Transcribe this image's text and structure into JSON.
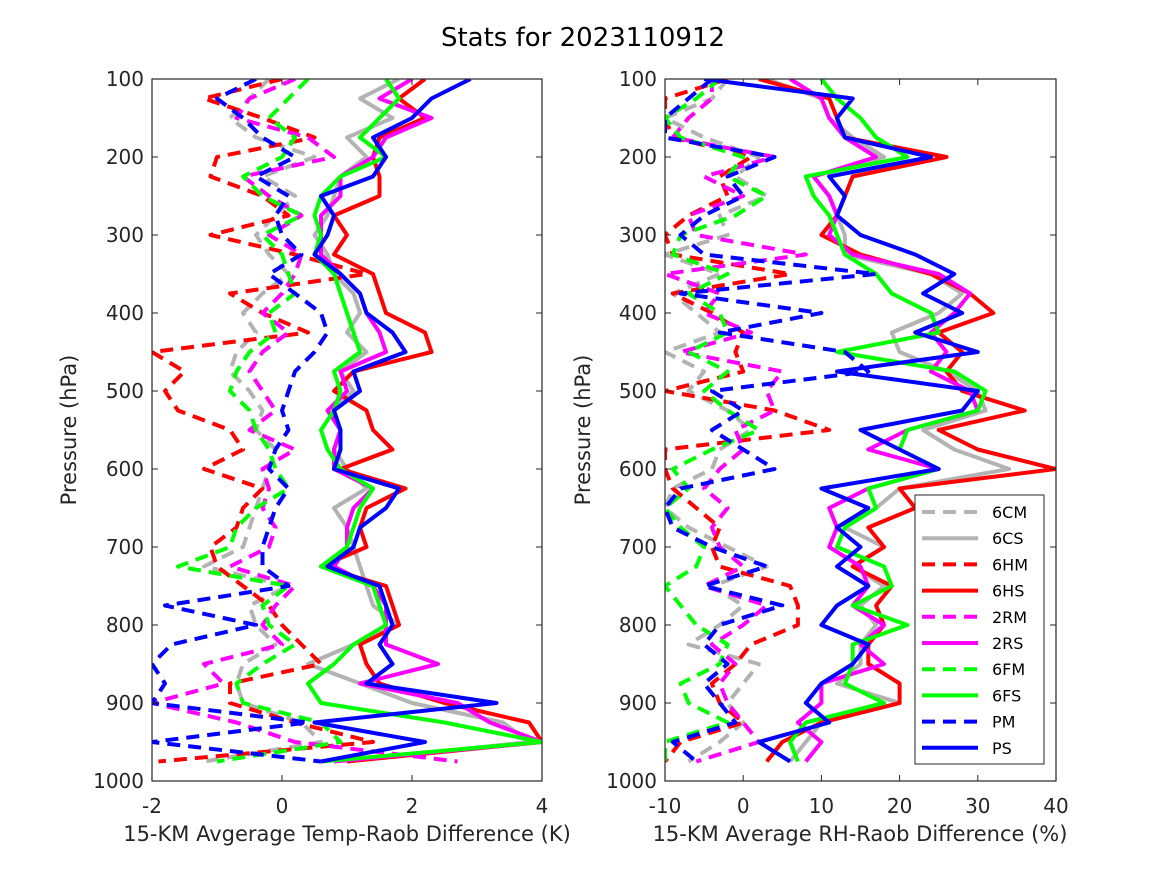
{
  "title": "Stats for 2023110912",
  "colors": {
    "gray": "#b3b3b3",
    "red": "#ff0000",
    "magenta": "#ff00ff",
    "green": "#00ff00",
    "blue": "#0000ff"
  },
  "chart_data": [
    {
      "type": "line",
      "xlabel": "15-KM Avgerage Temp-Raob Difference (K)",
      "ylabel": "Pressure (hPa)",
      "xlim": [
        -2,
        4
      ],
      "ylim": [
        100,
        1000
      ],
      "y_reversed": true,
      "x_ticks": [
        -2,
        0,
        2,
        4
      ],
      "y_ticks": [
        100,
        200,
        300,
        400,
        500,
        600,
        700,
        800,
        900,
        1000
      ],
      "pressure_levels": [
        100,
        125,
        150,
        175,
        200,
        225,
        250,
        275,
        300,
        325,
        350,
        375,
        400,
        425,
        450,
        475,
        500,
        525,
        550,
        575,
        600,
        625,
        650,
        675,
        700,
        725,
        750,
        775,
        800,
        825,
        850,
        875,
        900,
        925,
        950,
        975
      ],
      "series": [
        {
          "name": "6CM",
          "color": "gray",
          "dashed": true,
          "values": [
            -0.2,
            -0.5,
            -0.8,
            -0.4,
            0.5,
            -0.3,
            0.2,
            -0.1,
            -0.4,
            -0.2,
            0.1,
            -0.3,
            -0.6,
            -0.4,
            -0.7,
            -0.8,
            -0.5,
            -0.3,
            -0.4,
            -0.1,
            -0.2,
            -0.3,
            -0.4,
            -0.5,
            -0.6,
            -1.2,
            0.1,
            -0.5,
            -0.4,
            -0.1,
            -0.6,
            -0.7,
            -0.6,
            0.3,
            0.6,
            -1.2
          ]
        },
        {
          "name": "6CS",
          "color": "gray",
          "dashed": false,
          "values": [
            1.8,
            1.2,
            1.7,
            1.0,
            1.3,
            0.9,
            0.8,
            0.7,
            0.5,
            0.7,
            0.8,
            1.1,
            1.2,
            1.0,
            1.3,
            0.9,
            1.1,
            0.7,
            0.9,
            0.8,
            1.0,
            1.3,
            0.8,
            1.0,
            1.1,
            1.2,
            1.3,
            1.4,
            1.8,
            1.1,
            0.4,
            1.2,
            2.0,
            3.4,
            3.8,
            1.0
          ]
        },
        {
          "name": "6HM",
          "color": "red",
          "dashed": true,
          "values": [
            0.0,
            -1.2,
            -0.3,
            0.5,
            -1.0,
            -1.1,
            -0.3,
            0.1,
            -1.1,
            0.2,
            1.3,
            -0.8,
            -0.3,
            0.4,
            -2.0,
            -1.5,
            -1.8,
            -1.6,
            -0.8,
            -0.6,
            -1.2,
            -0.3,
            -0.6,
            -0.7,
            -1.1,
            -1.0,
            -0.6,
            -0.2,
            0.0,
            0.3,
            0.6,
            -0.8,
            -0.8,
            0.2,
            1.4,
            -1.9
          ]
        },
        {
          "name": "6HS",
          "color": "red",
          "dashed": false,
          "values": [
            2.2,
            1.8,
            2.2,
            1.5,
            1.4,
            1.5,
            1.5,
            0.8,
            1.0,
            0.8,
            1.4,
            1.5,
            1.6,
            2.2,
            2.3,
            1.1,
            0.8,
            1.3,
            1.4,
            1.7,
            0.9,
            1.9,
            1.3,
            1.2,
            1.3,
            0.6,
            1.6,
            1.7,
            1.8,
            1.2,
            1.3,
            1.5,
            2.5,
            3.8,
            4.0,
            1.0
          ]
        },
        {
          "name": "2RM",
          "color": "magenta",
          "dashed": true,
          "values": [
            0.2,
            -0.5,
            -0.7,
            0.4,
            0.8,
            -0.6,
            -0.2,
            0.3,
            -0.2,
            0.3,
            0.2,
            0.0,
            -0.3,
            0.1,
            -0.3,
            -0.5,
            -0.3,
            -0.1,
            -0.5,
            0.2,
            -0.3,
            -0.2,
            -0.3,
            -0.1,
            -0.2,
            -0.8,
            0.2,
            -0.1,
            -0.3,
            0.0,
            -1.2,
            -0.9,
            -2.0,
            -0.7,
            0.2,
            2.7
          ]
        },
        {
          "name": "2RS",
          "color": "magenta",
          "dashed": false,
          "values": [
            2.0,
            1.5,
            2.3,
            1.6,
            1.4,
            0.9,
            0.9,
            0.6,
            0.6,
            0.6,
            0.9,
            1.2,
            1.3,
            1.5,
            1.6,
            0.9,
            1.0,
            0.7,
            0.9,
            0.8,
            0.8,
            1.4,
            1.1,
            1.0,
            1.0,
            0.8,
            1.4,
            1.6,
            1.6,
            1.6,
            2.4,
            1.2,
            2.7,
            3.2,
            4.0,
            0.8
          ]
        },
        {
          "name": "6FM",
          "color": "green",
          "dashed": true,
          "values": [
            0.4,
            0.1,
            -0.2,
            0.2,
            0.0,
            -0.6,
            -0.3,
            0.3,
            -0.3,
            0.0,
            0.1,
            0.2,
            -0.2,
            -0.1,
            -0.5,
            -0.7,
            -0.8,
            -0.5,
            -0.4,
            -0.2,
            -0.1,
            0.1,
            -0.4,
            -0.7,
            -0.8,
            -1.6,
            0.1,
            -0.3,
            -0.2,
            0.2,
            -0.3,
            -0.7,
            -0.6,
            0.6,
            0.9,
            -1.0
          ]
        },
        {
          "name": "6FS",
          "color": "green",
          "dashed": false,
          "values": [
            1.6,
            1.8,
            1.5,
            1.2,
            1.6,
            0.9,
            0.6,
            0.5,
            0.6,
            0.5,
            0.8,
            0.9,
            1.0,
            1.1,
            1.2,
            0.8,
            0.9,
            0.8,
            0.6,
            0.7,
            0.9,
            1.4,
            1.2,
            1.1,
            1.0,
            0.6,
            1.4,
            1.5,
            1.6,
            1.1,
            0.8,
            0.4,
            0.6,
            2.5,
            4.0,
            0.6
          ]
        },
        {
          "name": "PM",
          "color": "blue",
          "dashed": true,
          "values": [
            -0.4,
            -1.0,
            -0.6,
            -0.3,
            0.2,
            -0.4,
            0.1,
            -0.1,
            0.0,
            0.3,
            -0.2,
            0.2,
            0.6,
            0.7,
            0.5,
            0.2,
            0.1,
            0.0,
            0.1,
            -0.1,
            -0.2,
            0.1,
            -0.1,
            -0.2,
            -0.3,
            -0.3,
            0.1,
            -1.8,
            -0.4,
            -1.7,
            -2.0,
            -1.8,
            -2.0,
            0.4,
            -2.0,
            0.6
          ]
        },
        {
          "name": "PS",
          "color": "blue",
          "dashed": false,
          "values": [
            2.9,
            2.3,
            2.0,
            1.4,
            1.6,
            1.4,
            0.6,
            0.8,
            0.7,
            0.5,
            0.9,
            1.2,
            1.3,
            1.7,
            1.9,
            1.1,
            1.2,
            0.8,
            0.9,
            0.9,
            0.8,
            1.8,
            1.6,
            1.2,
            1.1,
            0.7,
            1.5,
            1.6,
            1.7,
            1.5,
            1.7,
            1.3,
            3.3,
            0.5,
            2.2,
            0.6
          ]
        }
      ]
    },
    {
      "type": "line",
      "xlabel": "15-KM Average RH-Raob Difference (%)",
      "ylabel": "Pressure (hPa)",
      "xlim": [
        -10,
        40
      ],
      "ylim": [
        100,
        1000
      ],
      "y_reversed": true,
      "x_ticks": [
        -10,
        0,
        10,
        20,
        30,
        40
      ],
      "y_ticks": [
        100,
        200,
        300,
        400,
        500,
        600,
        700,
        800,
        900,
        1000
      ],
      "pressure_levels": [
        100,
        125,
        150,
        175,
        200,
        225,
        250,
        275,
        300,
        325,
        350,
        375,
        400,
        425,
        450,
        475,
        500,
        525,
        550,
        575,
        600,
        625,
        650,
        675,
        700,
        725,
        750,
        775,
        800,
        825,
        850,
        875,
        900,
        925,
        950,
        975
      ],
      "series": [
        {
          "name": "6CM",
          "color": "gray",
          "dashed": true,
          "values": [
            -2,
            -4,
            -10,
            -5,
            2,
            -1,
            3,
            -3,
            -2,
            -10,
            -3,
            -9,
            -6,
            -3,
            -10,
            -5,
            -7,
            -2,
            1,
            -3,
            -4,
            -9,
            -10,
            -7,
            -2,
            3,
            -4,
            0,
            -3,
            -7,
            2,
            0,
            -2,
            0,
            -3,
            -7
          ]
        },
        {
          "name": "6CS",
          "color": "gray",
          "dashed": false,
          "values": [
            3,
            10,
            11,
            14,
            18,
            9,
            11,
            12,
            13,
            13,
            24,
            28,
            25,
            19,
            20,
            26,
            30,
            31,
            23,
            27,
            34,
            20,
            17,
            13,
            18,
            14,
            18,
            15,
            17,
            15,
            15,
            12,
            20,
            10,
            8,
            6
          ]
        },
        {
          "name": "6HM",
          "color": "red",
          "dashed": true,
          "values": [
            -2,
            -10,
            -10,
            -9,
            1,
            -3,
            -2,
            -7,
            -10,
            -9,
            6,
            -9,
            -4,
            0,
            -1,
            0,
            -10,
            4,
            11,
            -10,
            -10,
            -9,
            -6,
            -3,
            -4,
            -3,
            6,
            7,
            7,
            1,
            -1,
            -4,
            -3,
            0,
            -8,
            -10
          ]
        },
        {
          "name": "6HS",
          "color": "red",
          "dashed": false,
          "values": [
            2,
            11,
            12,
            13,
            26,
            14,
            13,
            12,
            10,
            15,
            24,
            29,
            32,
            25,
            28,
            26,
            28,
            36,
            25,
            30,
            40,
            20,
            22,
            16,
            18,
            14,
            19,
            17,
            18,
            16,
            16,
            20,
            20,
            10,
            5,
            3
          ]
        },
        {
          "name": "2RM",
          "color": "magenta",
          "dashed": true,
          "values": [
            -4,
            -4,
            -7,
            -9,
            4,
            -5,
            0,
            -7,
            -6,
            8,
            -10,
            -3,
            -5,
            1,
            -8,
            5,
            3,
            4,
            -1,
            0,
            -3,
            -5,
            -2,
            -4,
            -3,
            0,
            -5,
            3,
            0,
            -4,
            -1,
            -3,
            -2,
            0,
            2,
            -6
          ]
        },
        {
          "name": "2RS",
          "color": "magenta",
          "dashed": false,
          "values": [
            6,
            10,
            11,
            13,
            17,
            9,
            11,
            12,
            11,
            14,
            25,
            29,
            27,
            24,
            26,
            24,
            29,
            30,
            21,
            16,
            25,
            16,
            11,
            12,
            11,
            15,
            16,
            14,
            18,
            15,
            18,
            10,
            10,
            7,
            10,
            8
          ]
        },
        {
          "name": "6FM",
          "color": "green",
          "dashed": true,
          "values": [
            -3,
            -6,
            -10,
            -8,
            0,
            -2,
            3,
            -1,
            -8,
            -9,
            -2,
            -7,
            -3,
            -2,
            -7,
            -2,
            -5,
            -2,
            2,
            -4,
            -9,
            -7,
            -10,
            -8,
            -5,
            -6,
            -10,
            -8,
            -6,
            -2,
            -3,
            -8,
            -7,
            -2,
            -10,
            -10
          ]
        },
        {
          "name": "6FS",
          "color": "green",
          "dashed": false,
          "values": [
            10,
            12,
            15,
            17,
            21,
            8,
            9,
            11,
            12,
            13,
            17,
            19,
            24,
            25,
            12,
            27,
            31,
            30,
            21,
            20,
            25,
            16,
            17,
            13,
            12,
            18,
            19,
            14,
            21,
            14,
            14,
            13,
            18,
            8,
            6,
            7
          ]
        },
        {
          "name": "PM",
          "color": "blue",
          "dashed": true,
          "values": [
            -4,
            -7,
            -10,
            -10,
            4,
            -2,
            0,
            -5,
            -8,
            -5,
            17,
            -8,
            10,
            -3,
            13,
            16,
            -4,
            0,
            -4,
            0,
            4,
            -8,
            -10,
            -9,
            -4,
            3,
            -5,
            5,
            -3,
            -5,
            -2,
            -5,
            -3,
            -1,
            -9,
            -6
          ]
        },
        {
          "name": "PS",
          "color": "blue",
          "dashed": false,
          "values": [
            -5,
            14,
            12,
            13,
            24,
            11,
            13,
            12,
            15,
            22,
            27,
            23,
            28,
            22,
            30,
            12,
            30,
            28,
            15,
            20,
            25,
            10,
            16,
            12,
            15,
            12,
            16,
            12,
            10,
            16,
            14,
            10,
            8,
            11,
            2,
            6
          ]
        }
      ]
    }
  ]
}
